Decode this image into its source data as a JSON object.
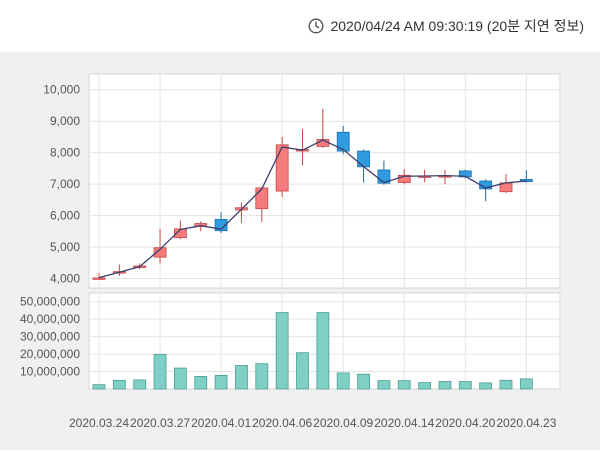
{
  "header": {
    "timestamp": "2020/04/24 AM 09:30:19 (20분 지연 정보)",
    "clock_icon": "clock-icon"
  },
  "chart_data": [
    {
      "type": "candlestick",
      "ylim": [
        3700,
        10500
      ],
      "yticks": [
        4000,
        5000,
        6000,
        7000,
        8000,
        9000,
        10000
      ],
      "ytick_labels": [
        "4,000",
        "5,000",
        "6,000",
        "7,000",
        "8,000",
        "9,000",
        "10,000"
      ],
      "grid": true,
      "colors": {
        "up": "#f47c7c",
        "down": "#2f9be0",
        "line": "#3a3f6e"
      },
      "candles": [
        {
          "o": 4020,
          "h": 4180,
          "l": 3980,
          "c": 4020
        },
        {
          "o": 4180,
          "h": 4450,
          "l": 4080,
          "c": 4220
        },
        {
          "o": 4350,
          "h": 4480,
          "l": 4300,
          "c": 4400
        },
        {
          "o": 4680,
          "h": 5580,
          "l": 4480,
          "c": 4980
        },
        {
          "o": 5300,
          "h": 5850,
          "l": 5250,
          "c": 5580
        },
        {
          "o": 5650,
          "h": 5820,
          "l": 5500,
          "c": 5750
        },
        {
          "o": 5880,
          "h": 6100,
          "l": 5450,
          "c": 5520
        },
        {
          "o": 6180,
          "h": 6420,
          "l": 5760,
          "c": 6250
        },
        {
          "o": 6220,
          "h": 6900,
          "l": 5800,
          "c": 6880
        },
        {
          "o": 6780,
          "h": 8500,
          "l": 6600,
          "c": 8250
        },
        {
          "o": 8100,
          "h": 8750,
          "l": 7600,
          "c": 8100
        },
        {
          "o": 8200,
          "h": 9400,
          "l": 8150,
          "c": 8420
        },
        {
          "o": 8650,
          "h": 8850,
          "l": 7950,
          "c": 8050
        },
        {
          "o": 8050,
          "h": 8100,
          "l": 7050,
          "c": 7550
        },
        {
          "o": 7450,
          "h": 7750,
          "l": 6980,
          "c": 7030
        },
        {
          "o": 7050,
          "h": 7480,
          "l": 7000,
          "c": 7280
        },
        {
          "o": 7260,
          "h": 7460,
          "l": 7060,
          "c": 7260
        },
        {
          "o": 7260,
          "h": 7460,
          "l": 7000,
          "c": 7270
        },
        {
          "o": 7420,
          "h": 7460,
          "l": 7180,
          "c": 7230
        },
        {
          "o": 7100,
          "h": 7150,
          "l": 6460,
          "c": 6850
        },
        {
          "o": 6760,
          "h": 7320,
          "l": 6720,
          "c": 7040
        },
        {
          "o": 7150,
          "h": 7450,
          "l": 7050,
          "c": 7080
        }
      ],
      "line": [
        4030,
        4200,
        4380,
        4930,
        5560,
        5680,
        5570,
        6200,
        6850,
        8180,
        8080,
        8400,
        8100,
        7560,
        7050,
        7250,
        7260,
        7270,
        7250,
        6880,
        7040,
        7100
      ]
    },
    {
      "type": "bar",
      "ylim": [
        0,
        55000000
      ],
      "yticks": [
        10000000,
        20000000,
        30000000,
        40000000,
        50000000
      ],
      "ytick_labels": [
        "10,000,000",
        "20,000,000",
        "30,000,000",
        "40,000,000",
        "50,000,000"
      ],
      "grid": true,
      "color": "#7ecfc6",
      "values": [
        2500000,
        5000000,
        5200000,
        19800000,
        12000000,
        7200000,
        7800000,
        13500000,
        14500000,
        43800000,
        20800000,
        43800000,
        9200000,
        8500000,
        4800000,
        4800000,
        3700000,
        4300000,
        4300000,
        3500000,
        5000000,
        5800000
      ],
      "x_labels": [
        "2020.03.24",
        "2020.03.27",
        "2020.04.01",
        "2020.04.06",
        "2020.04.09",
        "2020.04.14",
        "2020.04.20",
        "2020.04.23"
      ],
      "x_label_indices": [
        0,
        3,
        6,
        9,
        12,
        15,
        18,
        21
      ]
    }
  ]
}
